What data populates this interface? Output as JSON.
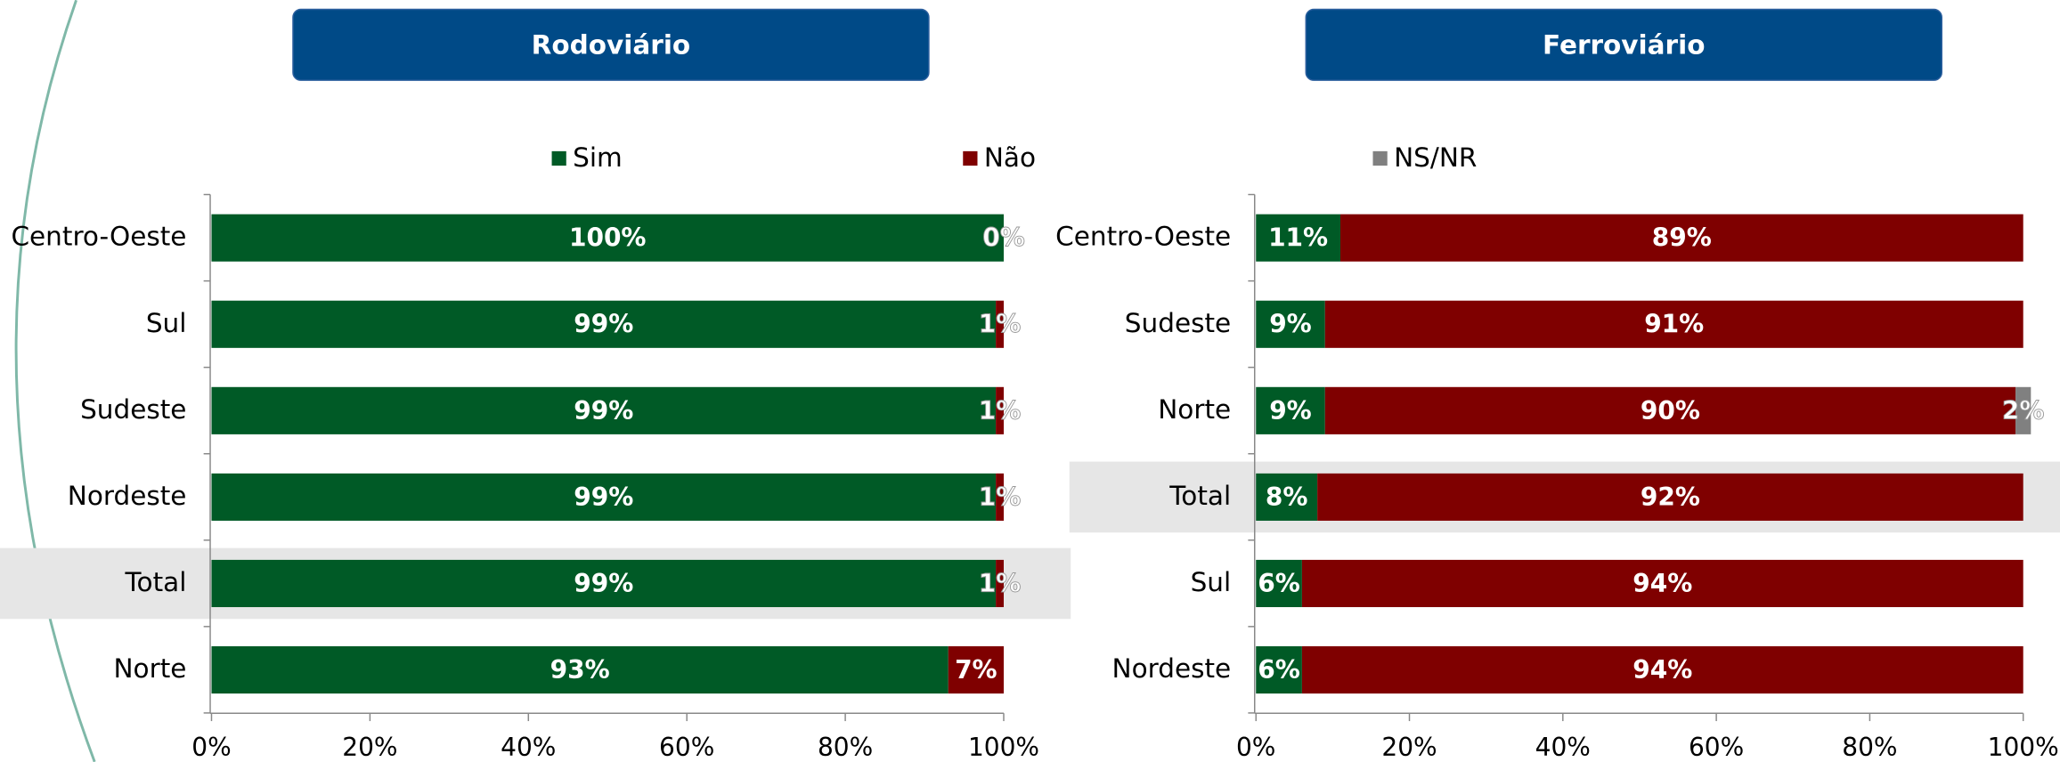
{
  "chart_data": [
    {
      "type": "stacked_bar_horizontal",
      "title": "Rodoviário",
      "categories": [
        "Centro-Oeste",
        "Sul",
        "Sudeste",
        "Nordeste",
        "Total",
        "Norte"
      ],
      "highlight": "Total",
      "series": [
        {
          "name": "Sim",
          "color": "#005a26",
          "values": [
            100,
            99,
            99,
            99,
            99,
            93
          ],
          "value_labels": [
            "100%",
            "99%",
            "99%",
            "99%",
            "99%",
            "93%"
          ]
        },
        {
          "name": "Não",
          "color": "#7f0000",
          "values": [
            0,
            1,
            1,
            1,
            1,
            7
          ],
          "value_labels": [
            "0%",
            "1%",
            "1%",
            "1%",
            "1%",
            "7%"
          ]
        }
      ],
      "xlim": [
        0,
        100
      ],
      "xticks": [
        {
          "value": 0,
          "label": "0%"
        },
        {
          "value": 20,
          "label": "20%"
        },
        {
          "value": 40,
          "label": "40%"
        },
        {
          "value": 60,
          "label": "60%"
        },
        {
          "value": 80,
          "label": "80%"
        },
        {
          "value": 100,
          "label": "100%"
        }
      ]
    },
    {
      "type": "stacked_bar_horizontal",
      "title": "Ferroviário",
      "categories": [
        "Centro-Oeste",
        "Sudeste",
        "Norte",
        "Total",
        "Sul",
        "Nordeste"
      ],
      "highlight": "Total",
      "series": [
        {
          "name": "Sim",
          "color": "#005a26",
          "values": [
            11,
            9,
            9,
            8,
            6,
            6
          ],
          "value_labels": [
            "11%",
            "9%",
            "9%",
            "8%",
            "6%",
            "6%"
          ]
        },
        {
          "name": "Não",
          "color": "#7f0000",
          "values": [
            89,
            91,
            90,
            92,
            94,
            94
          ],
          "value_labels": [
            "89%",
            "91%",
            "90%",
            "92%",
            "94%",
            "94%"
          ]
        },
        {
          "name": "NS/NR",
          "color": "#808080",
          "values": [
            null,
            null,
            2,
            null,
            null,
            null
          ],
          "value_labels": [
            null,
            null,
            "2%",
            null,
            null,
            null
          ]
        }
      ],
      "xlim": [
        0,
        100
      ],
      "xticks": [
        {
          "value": 0,
          "label": "0%"
        },
        {
          "value": 20,
          "label": "20%"
        },
        {
          "value": 40,
          "label": "40%"
        },
        {
          "value": 60,
          "label": "60%"
        },
        {
          "value": 80,
          "label": "80%"
        },
        {
          "value": 100,
          "label": "100%"
        }
      ]
    }
  ]
}
